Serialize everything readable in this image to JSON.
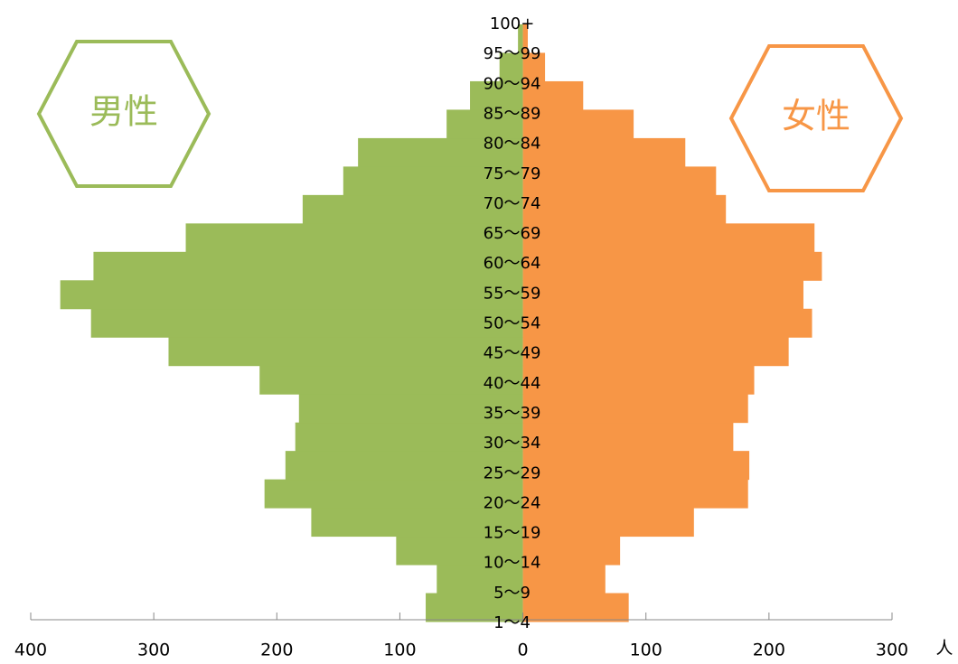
{
  "chart_data": {
    "type": "population_pyramid",
    "categories": [
      "1～4",
      "5～9",
      "10～14",
      "15～19",
      "20～24",
      "25～29",
      "30～34",
      "35～39",
      "40～44",
      "45～49",
      "50～54",
      "55～59",
      "60～64",
      "65～69",
      "70～74",
      "75～79",
      "80～84",
      "85～89",
      "90～94",
      "95～99",
      "100+"
    ],
    "series": [
      {
        "name": "男性",
        "color": "#9bbb59",
        "side": "left",
        "values": [
          79,
          70,
          103,
          172,
          210,
          193,
          185,
          182,
          214,
          288,
          351,
          376,
          349,
          274,
          179,
          146,
          134,
          62,
          43,
          19,
          4
        ]
      },
      {
        "name": "女性",
        "color": "#f79646",
        "side": "right",
        "values": [
          86,
          67,
          79,
          139,
          183,
          184,
          171,
          183,
          188,
          216,
          235,
          228,
          243,
          237,
          165,
          157,
          132,
          90,
          49,
          18,
          4
        ]
      }
    ],
    "xlim": [
      -400,
      300
    ],
    "xticks": [
      {
        "value": -400,
        "label": "400"
      },
      {
        "value": -300,
        "label": "300"
      },
      {
        "value": -200,
        "label": "200"
      },
      {
        "value": -100,
        "label": "100"
      },
      0,
      100,
      200,
      300
    ],
    "x_unit": "人"
  }
}
